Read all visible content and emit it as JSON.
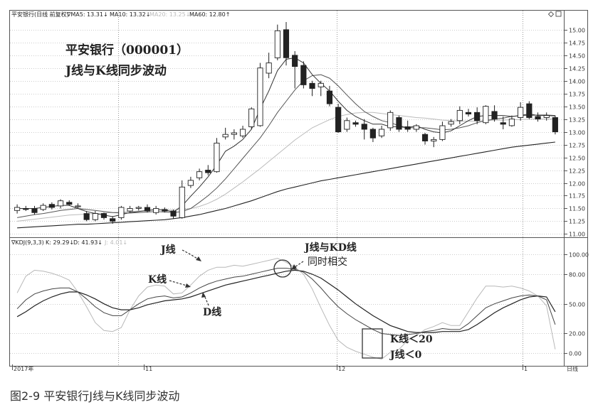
{
  "colors": {
    "candle_up": "#ffffff",
    "candle_down": "#222222",
    "ma5": "#333333",
    "ma10": "#555555",
    "ma20": "#bbbbbb",
    "ma60": "#222222",
    "k_line": "#444444",
    "d_line": "#222222",
    "j_line": "#b8b8b8",
    "grid": "#999999"
  },
  "header": {
    "price": {
      "name": "平安银行(日线 前复权)",
      "ma5": "∇MA5: 13.31↓",
      "ma10": "MA10: 13.32↓",
      "ma20": "MA20: 13.25↓",
      "ma60": "MA60: 12.80↑"
    },
    "kdj": {
      "name": "∇KDJ(9,3,3)",
      "k": "K: 29.29↓",
      "d": "D: 41.93↓",
      "j": "J: 4.01↓"
    },
    "icons": [
      "diamond-icon",
      "window-icon"
    ]
  },
  "annotations": {
    "title_line1": "平安银行（000001）",
    "title_line2": "J线与K线同步波动",
    "j_label": "J线",
    "k_label": "K线",
    "d_label": "D线",
    "cross_line1": "J线与KD线",
    "cross_line2": "同时相交",
    "cond1": "K线＜20",
    "cond2": "J线＜0"
  },
  "x_axis": {
    "labels": [
      "2017年",
      "11",
      "12",
      "1"
    ],
    "period_label": "日线"
  },
  "caption": "图2-9  平安银行J线与K线同步波动",
  "chart_data": [
    {
      "type": "candlestick",
      "y_ticks": [
        11.0,
        11.25,
        11.5,
        11.75,
        12.0,
        12.25,
        12.5,
        12.75,
        13.0,
        13.25,
        13.5,
        13.75,
        14.0,
        14.25,
        14.5,
        14.75,
        15.0
      ],
      "ylim": [
        10.95,
        15.22
      ],
      "candles": [
        {
          "o": 11.46,
          "c": 11.52,
          "h": 11.58,
          "l": 11.4
        },
        {
          "o": 11.5,
          "c": 11.48,
          "h": 11.55,
          "l": 11.45
        },
        {
          "o": 11.5,
          "c": 11.42,
          "h": 11.55,
          "l": 11.38
        },
        {
          "o": 11.48,
          "c": 11.56,
          "h": 11.6,
          "l": 11.45
        },
        {
          "o": 11.58,
          "c": 11.52,
          "h": 11.62,
          "l": 11.48
        },
        {
          "o": 11.55,
          "c": 11.65,
          "h": 11.68,
          "l": 11.5
        },
        {
          "o": 11.62,
          "c": 11.58,
          "h": 11.66,
          "l": 11.55
        },
        {
          "o": 11.55,
          "c": 11.55,
          "h": 11.6,
          "l": 11.5
        },
        {
          "o": 11.4,
          "c": 11.28,
          "h": 11.45,
          "l": 11.25
        },
        {
          "o": 11.28,
          "c": 11.4,
          "h": 11.45,
          "l": 11.25
        },
        {
          "o": 11.4,
          "c": 11.32,
          "h": 11.42,
          "l": 11.28
        },
        {
          "o": 11.3,
          "c": 11.25,
          "h": 11.35,
          "l": 11.2
        },
        {
          "o": 11.32,
          "c": 11.52,
          "h": 11.55,
          "l": 11.28
        },
        {
          "o": 11.45,
          "c": 11.5,
          "h": 11.55,
          "l": 11.42
        },
        {
          "o": 11.5,
          "c": 11.52,
          "h": 11.55,
          "l": 11.46
        },
        {
          "o": 11.52,
          "c": 11.45,
          "h": 11.58,
          "l": 11.42
        },
        {
          "o": 11.42,
          "c": 11.5,
          "h": 11.55,
          "l": 11.38
        },
        {
          "o": 11.48,
          "c": 11.45,
          "h": 11.52,
          "l": 11.42
        },
        {
          "o": 11.45,
          "c": 11.35,
          "h": 11.48,
          "l": 11.3
        },
        {
          "o": 11.32,
          "c": 11.92,
          "h": 12.05,
          "l": 11.3
        },
        {
          "o": 11.95,
          "c": 12.05,
          "h": 12.12,
          "l": 11.9
        },
        {
          "o": 12.1,
          "c": 12.22,
          "h": 12.28,
          "l": 12.05
        },
        {
          "o": 12.25,
          "c": 12.2,
          "h": 12.35,
          "l": 12.15
        },
        {
          "o": 12.22,
          "c": 12.78,
          "h": 12.88,
          "l": 12.2
        },
        {
          "o": 12.9,
          "c": 12.95,
          "h": 13.08,
          "l": 12.85
        },
        {
          "o": 12.95,
          "c": 12.98,
          "h": 13.05,
          "l": 12.85
        },
        {
          "o": 12.92,
          "c": 13.05,
          "h": 13.12,
          "l": 12.88
        },
        {
          "o": 13.1,
          "c": 13.45,
          "h": 13.48,
          "l": 13.05
        },
        {
          "o": 13.12,
          "c": 14.25,
          "h": 14.35,
          "l": 13.1
        },
        {
          "o": 14.15,
          "c": 14.35,
          "h": 14.55,
          "l": 14.05
        },
        {
          "o": 14.45,
          "c": 14.98,
          "h": 15.1,
          "l": 14.4
        },
        {
          "o": 15.0,
          "c": 14.45,
          "h": 15.15,
          "l": 14.3
        },
        {
          "o": 14.5,
          "c": 14.28,
          "h": 14.58,
          "l": 13.85
        },
        {
          "o": 14.3,
          "c": 13.92,
          "h": 14.38,
          "l": 13.85
        },
        {
          "o": 13.95,
          "c": 13.85,
          "h": 14.0,
          "l": 13.7
        },
        {
          "o": 13.88,
          "c": 13.95,
          "h": 14.0,
          "l": 13.7
        },
        {
          "o": 13.8,
          "c": 13.55,
          "h": 13.9,
          "l": 13.5
        },
        {
          "o": 13.48,
          "c": 13.0,
          "h": 13.55,
          "l": 12.98
        },
        {
          "o": 13.05,
          "c": 13.22,
          "h": 13.28,
          "l": 13.0
        },
        {
          "o": 13.18,
          "c": 13.15,
          "h": 13.22,
          "l": 13.1
        },
        {
          "o": 13.15,
          "c": 13.05,
          "h": 13.25,
          "l": 12.85
        },
        {
          "o": 13.05,
          "c": 12.88,
          "h": 13.08,
          "l": 12.8
        },
        {
          "o": 12.92,
          "c": 13.05,
          "h": 13.12,
          "l": 12.88
        },
        {
          "o": 13.08,
          "c": 13.38,
          "h": 13.42,
          "l": 13.02
        },
        {
          "o": 13.28,
          "c": 13.05,
          "h": 13.32,
          "l": 13.0
        },
        {
          "o": 13.1,
          "c": 13.05,
          "h": 13.22,
          "l": 13.0
        },
        {
          "o": 13.05,
          "c": 13.12,
          "h": 13.15,
          "l": 13.0
        },
        {
          "o": 12.95,
          "c": 12.82,
          "h": 12.98,
          "l": 12.75
        },
        {
          "o": 12.82,
          "c": 12.85,
          "h": 12.9,
          "l": 12.7
        },
        {
          "o": 12.85,
          "c": 13.12,
          "h": 13.2,
          "l": 12.82
        },
        {
          "o": 13.15,
          "c": 13.2,
          "h": 13.25,
          "l": 13.1
        },
        {
          "o": 13.22,
          "c": 13.42,
          "h": 13.5,
          "l": 13.15
        },
        {
          "o": 13.38,
          "c": 13.35,
          "h": 13.45,
          "l": 13.3
        },
        {
          "o": 13.38,
          "c": 13.22,
          "h": 13.48,
          "l": 13.15
        },
        {
          "o": 13.18,
          "c": 13.5,
          "h": 13.52,
          "l": 13.15
        },
        {
          "o": 13.4,
          "c": 13.25,
          "h": 13.52,
          "l": 13.2
        },
        {
          "o": 13.18,
          "c": 13.15,
          "h": 13.3,
          "l": 13.05
        },
        {
          "o": 13.12,
          "c": 13.25,
          "h": 13.32,
          "l": 13.1
        },
        {
          "o": 13.28,
          "c": 13.48,
          "h": 13.58,
          "l": 13.22
        },
        {
          "o": 13.55,
          "c": 13.28,
          "h": 13.6,
          "l": 13.25
        },
        {
          "o": 13.3,
          "c": 13.25,
          "h": 13.38,
          "l": 13.2
        },
        {
          "o": 13.28,
          "c": 13.32,
          "h": 13.38,
          "l": 13.22
        },
        {
          "o": 13.28,
          "c": 13.0,
          "h": 13.32,
          "l": 12.95
        }
      ],
      "ma5": [
        11.5,
        11.5,
        11.5,
        11.52,
        11.54,
        11.56,
        11.56,
        11.5,
        11.44,
        11.4,
        11.37,
        11.34,
        11.38,
        11.42,
        11.44,
        11.46,
        11.48,
        11.47,
        11.43,
        11.55,
        11.74,
        11.92,
        12.12,
        12.35,
        12.62,
        12.72,
        12.85,
        13.05,
        13.45,
        13.8,
        14.2,
        14.42,
        14.45,
        14.35,
        14.12,
        13.95,
        13.8,
        13.6,
        13.42,
        13.3,
        13.22,
        13.15,
        13.15,
        13.1,
        13.1,
        13.08,
        13.12,
        13.05,
        13.0,
        12.98,
        13.02,
        13.12,
        13.22,
        13.3,
        13.32,
        13.32,
        13.32,
        13.3,
        13.32,
        13.35,
        13.32,
        13.32,
        13.31
      ],
      "ma10": [
        11.32,
        11.35,
        11.38,
        11.4,
        11.43,
        11.46,
        11.48,
        11.5,
        11.48,
        11.46,
        11.44,
        11.42,
        11.41,
        11.41,
        11.42,
        11.43,
        11.44,
        11.43,
        11.42,
        11.44,
        11.5,
        11.62,
        11.75,
        11.9,
        12.08,
        12.28,
        12.48,
        12.68,
        12.88,
        13.12,
        13.38,
        13.6,
        13.82,
        14.0,
        14.1,
        14.12,
        14.05,
        13.9,
        13.72,
        13.55,
        13.4,
        13.3,
        13.22,
        13.18,
        13.12,
        13.08,
        13.08,
        13.08,
        13.06,
        13.04,
        13.05,
        13.08,
        13.12,
        13.18,
        13.22,
        13.25,
        13.27,
        13.3,
        13.32,
        13.32,
        13.33,
        13.33,
        13.32
      ],
      "ma20": [
        11.25,
        11.27,
        11.29,
        11.31,
        11.33,
        11.35,
        11.37,
        11.38,
        11.39,
        11.4,
        11.41,
        11.42,
        11.43,
        11.44,
        11.45,
        11.46,
        11.47,
        11.47,
        11.47,
        11.48,
        11.5,
        11.54,
        11.6,
        11.68,
        11.78,
        11.9,
        12.02,
        12.15,
        12.28,
        12.42,
        12.56,
        12.7,
        12.84,
        12.96,
        13.08,
        13.16,
        13.24,
        13.3,
        13.34,
        13.37,
        13.38,
        13.38,
        13.36,
        13.34,
        13.32,
        13.3,
        13.28,
        13.27,
        13.25,
        13.23,
        13.22,
        13.21,
        13.21,
        13.21,
        13.22,
        13.23,
        13.23,
        13.24,
        13.24,
        13.25,
        13.25,
        13.25,
        13.25
      ],
      "ma60": [
        11.12,
        11.13,
        11.14,
        11.15,
        11.16,
        11.17,
        11.18,
        11.19,
        11.19,
        11.2,
        11.21,
        11.22,
        11.23,
        11.24,
        11.25,
        11.26,
        11.27,
        11.28,
        11.3,
        11.32,
        11.35,
        11.38,
        11.42,
        11.46,
        11.5,
        11.55,
        11.6,
        11.65,
        11.71,
        11.77,
        11.83,
        11.88,
        11.92,
        11.96,
        12.0,
        12.04,
        12.07,
        12.1,
        12.13,
        12.16,
        12.19,
        12.22,
        12.25,
        12.28,
        12.31,
        12.34,
        12.37,
        12.4,
        12.43,
        12.46,
        12.49,
        12.52,
        12.55,
        12.58,
        12.61,
        12.64,
        12.67,
        12.7,
        12.72,
        12.74,
        12.76,
        12.78,
        12.8
      ]
    },
    {
      "type": "line",
      "y_ticks": [
        0,
        20,
        50,
        80,
        100
      ],
      "ylim": [
        -12,
        108
      ],
      "series": [
        {
          "name": "K线",
          "values": [
            45,
            54,
            60,
            63,
            65,
            66,
            66,
            62,
            55,
            47,
            41,
            38,
            38,
            44,
            50,
            55,
            57,
            58,
            56,
            57,
            61,
            66,
            70,
            73,
            75,
            77,
            78,
            80,
            82,
            84,
            86,
            86,
            85,
            82,
            75,
            66,
            56,
            47,
            40,
            34,
            29,
            24,
            20,
            19,
            18,
            19,
            20,
            22,
            23,
            25,
            24,
            24,
            30,
            38,
            46,
            50,
            53,
            56,
            58,
            59,
            58,
            54,
            29
          ]
        },
        {
          "name": "D线",
          "values": [
            37,
            42,
            48,
            53,
            57,
            60,
            62,
            62,
            59,
            55,
            50,
            46,
            44,
            44,
            46,
            49,
            51,
            53,
            54,
            55,
            57,
            60,
            63,
            66,
            69,
            71,
            73,
            75,
            77,
            79,
            81,
            83,
            84,
            83,
            80,
            76,
            70,
            64,
            57,
            50,
            44,
            38,
            33,
            28,
            25,
            22,
            21,
            21,
            21,
            22,
            22,
            22,
            24,
            29,
            35,
            41,
            46,
            50,
            54,
            57,
            58,
            57,
            42
          ]
        },
        {
          "name": "J线",
          "values": [
            61,
            78,
            84,
            83,
            81,
            78,
            74,
            62,
            47,
            31,
            23,
            22,
            26,
            44,
            58,
            67,
            69,
            68,
            60,
            61,
            69,
            78,
            84,
            87,
            87,
            89,
            88,
            90,
            92,
            94,
            96,
            92,
            87,
            80,
            65,
            46,
            28,
            13,
            6,
            2,
            -1,
            -4,
            -6,
            1,
            4,
            13,
            18,
            24,
            27,
            31,
            28,
            28,
            42,
            56,
            68,
            68,
            67,
            68,
            66,
            63,
            58,
            48,
            4
          ]
        }
      ]
    }
  ]
}
